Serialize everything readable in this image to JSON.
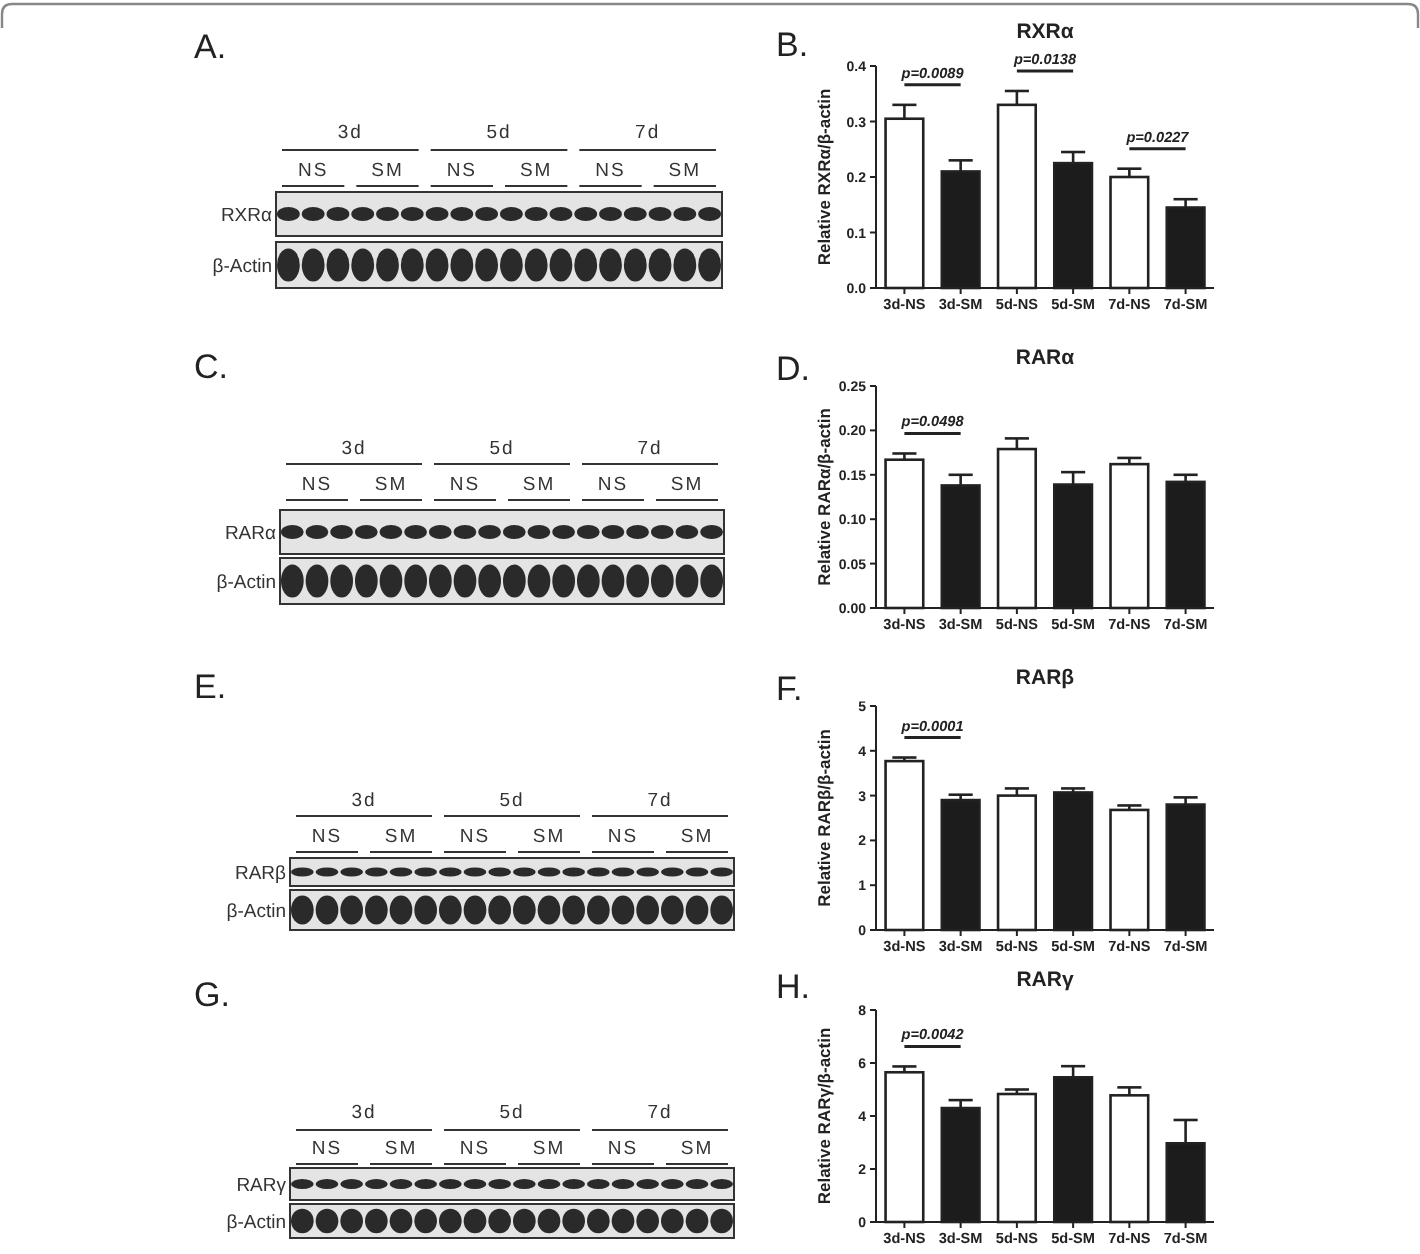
{
  "chart_data": [
    {
      "type": "other",
      "annotations": [
        "A.",
        "3d",
        "5d",
        "7d"
      ],
      "categories": [
        "NS",
        "SM",
        "NS",
        "SM",
        "NS",
        "SM"
      ],
      "y_categories": [
        "RXRα",
        "β-Actin"
      ]
    },
    {
      "type": "bar",
      "title": "RXRα",
      "ylabel": "Relative RXRα/β-actin",
      "categories": [
        "3d-NS",
        "3d-SM",
        "5d-NS",
        "5d-SM",
        "7d-NS",
        "7d-SM"
      ],
      "values": [
        0.305,
        0.21,
        0.33,
        0.225,
        0.2,
        0.145
      ],
      "colors": [
        "#ffffff",
        "#1c1c1c",
        "#ffffff",
        "#1c1c1c",
        "#ffffff",
        "#1c1c1c"
      ],
      "errors": [
        [
          0.305,
          0.33
        ],
        [
          0.21,
          0.23
        ],
        [
          0.33,
          0.355
        ],
        [
          0.225,
          0.245
        ],
        [
          0.2,
          0.215
        ],
        [
          0.145,
          0.16
        ]
      ],
      "ylim": [
        0,
        0.4
      ],
      "yticks": [
        {
          "value": 0,
          "label": "0.0"
        },
        0.1,
        0.2,
        0.3,
        0.4
      ],
      "annotations": [
        "B.",
        "p=0.0089",
        "p=0.0138",
        "p=0.0227"
      ]
    },
    {
      "type": "other",
      "annotations": [
        "C.",
        "3d",
        "5d",
        "7d"
      ],
      "categories": [
        "NS",
        "SM",
        "NS",
        "SM",
        "NS",
        "SM"
      ],
      "y_categories": [
        "RARα",
        "β-Actin"
      ]
    },
    {
      "type": "bar",
      "title": "RARα",
      "ylabel": "Relative RARα/β-actin",
      "categories": [
        "3d-NS",
        "3d-SM",
        "5d-NS",
        "5d-SM",
        "7d-NS",
        "7d-SM"
      ],
      "values": [
        0.167,
        0.138,
        0.179,
        0.139,
        0.162,
        0.142
      ],
      "colors": [
        "#ffffff",
        "#1c1c1c",
        "#ffffff",
        "#1c1c1c",
        "#ffffff",
        "#1c1c1c"
      ],
      "errors": [
        [
          0.167,
          0.174
        ],
        [
          0.138,
          0.15
        ],
        [
          0.179,
          0.191
        ],
        [
          0.139,
          0.153
        ],
        [
          0.162,
          0.169
        ],
        [
          0.142,
          0.15
        ]
      ],
      "ylim": [
        0,
        0.25
      ],
      "yticks": [
        {
          "value": 0,
          "label": "0.00"
        },
        0.05,
        {
          "value": 0.1,
          "label": "0.10"
        },
        0.15,
        {
          "value": 0.2,
          "label": "0.20"
        },
        0.25
      ],
      "annotations": [
        "D.",
        "p=0.0498"
      ]
    },
    {
      "type": "other",
      "annotations": [
        "E.",
        "3d",
        "5d",
        "7d"
      ],
      "categories": [
        "NS",
        "SM",
        "NS",
        "SM",
        "NS",
        "SM"
      ],
      "y_categories": [
        "RARβ",
        "β-Actin"
      ]
    },
    {
      "type": "bar",
      "title": "RARβ",
      "ylabel": "Relative RARβ/β-actin",
      "categories": [
        "3d-NS",
        "3d-SM",
        "5d-NS",
        "5d-SM",
        "7d-NS",
        "7d-SM"
      ],
      "values": [
        3.77,
        2.9,
        3.0,
        3.07,
        2.68,
        2.8
      ],
      "colors": [
        "#ffffff",
        "#1c1c1c",
        "#ffffff",
        "#1c1c1c",
        "#ffffff",
        "#1c1c1c"
      ],
      "errors": [
        [
          3.77,
          3.85
        ],
        [
          2.9,
          3.02
        ],
        [
          3.0,
          3.16
        ],
        [
          3.07,
          3.16
        ],
        [
          2.68,
          2.78
        ],
        [
          2.8,
          2.96
        ]
      ],
      "ylim": [
        0,
        5
      ],
      "yticks": [
        0,
        1,
        2,
        3,
        4,
        5
      ],
      "annotations": [
        "F.",
        "p=0.0001"
      ]
    },
    {
      "type": "other",
      "annotations": [
        "G.",
        "3d",
        "5d",
        "7d"
      ],
      "categories": [
        "NS",
        "SM",
        "NS",
        "SM",
        "NS",
        "SM"
      ],
      "y_categories": [
        "RARγ",
        "β-Actin"
      ]
    },
    {
      "type": "bar",
      "title": "RARγ",
      "ylabel": "Relative RARγ/β-actin",
      "categories": [
        "3d-NS",
        "3d-SM",
        "5d-NS",
        "5d-SM",
        "7d-NS",
        "7d-SM"
      ],
      "values": [
        5.65,
        4.3,
        4.83,
        5.46,
        4.78,
        2.97
      ],
      "colors": [
        "#ffffff",
        "#1c1c1c",
        "#ffffff",
        "#1c1c1c",
        "#ffffff",
        "#1c1c1c"
      ],
      "errors": [
        [
          5.65,
          5.87
        ],
        [
          4.3,
          4.6
        ],
        [
          4.83,
          5.0
        ],
        [
          5.46,
          5.88
        ],
        [
          4.78,
          5.08
        ],
        [
          2.97,
          3.85
        ]
      ],
      "ylim": [
        0,
        8
      ],
      "yticks": [
        0,
        2,
        4,
        6,
        8
      ],
      "annotations": [
        "H.",
        "p=0.0042"
      ]
    }
  ]
}
